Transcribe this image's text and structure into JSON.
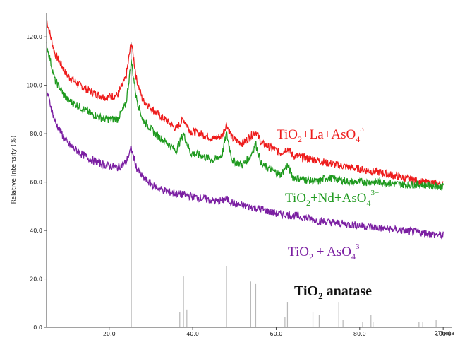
{
  "chart_data": {
    "type": "line",
    "title": "",
    "xlabel": "2Theta",
    "ylabel": "Relative Intensity (%)",
    "xlim": [
      5,
      102
    ],
    "ylim": [
      0,
      130
    ],
    "x_ticks": [
      "20.0",
      "40.0",
      "60.0",
      "80.0",
      "100.0"
    ],
    "y_ticks": [
      "0.0",
      "20.0",
      "40.0",
      "60.0",
      "80.0",
      "100.0",
      "120.0"
    ],
    "grid": false,
    "series": [
      {
        "name": "TiO2+La+AsO4 3-",
        "label_main": "TiO",
        "label_sub": "2",
        "label_rest": "+La+AsO",
        "label_sub2": "4",
        "label_sup": "3−",
        "color": "#ee1c1c",
        "x": [
          5,
          7,
          10,
          13,
          16,
          19,
          22,
          24,
          25.3,
          26.5,
          28,
          31,
          34,
          36,
          37.8,
          39.5,
          42,
          45,
          47,
          48.1,
          49.5,
          52,
          53.9,
          55.1,
          56.5,
          59,
          61,
          62.7,
          64,
          67,
          70,
          72,
          75,
          78,
          81,
          85,
          90,
          95,
          100
        ],
        "y": [
          127,
          113,
          104,
          100,
          97,
          95,
          96,
          103,
          118,
          103,
          94,
          89,
          85,
          82,
          86,
          81,
          80,
          78,
          79,
          84,
          78,
          76,
          79,
          81,
          76,
          74,
          72,
          74,
          71,
          70,
          69,
          68,
          67,
          66,
          65,
          64,
          62,
          60,
          59
        ]
      },
      {
        "name": "TiO2+Nd+AsO4 3-",
        "label_main": "TiO",
        "label_sub": "2",
        "label_rest": "+Nd+AsO",
        "label_sub2": "4",
        "label_sup": "3−",
        "color": "#1f9a1f",
        "x": [
          5,
          7,
          10,
          13,
          16,
          19,
          22,
          24,
          25.3,
          26.5,
          28,
          31,
          34,
          36,
          37.8,
          39.5,
          42,
          45,
          47,
          48.1,
          49.5,
          52,
          53.9,
          55.1,
          56.5,
          59,
          61,
          62.7,
          64,
          67,
          70,
          72,
          75,
          78,
          81,
          85,
          90,
          95,
          100
        ],
        "y": [
          117,
          102,
          94,
          91,
          88,
          86,
          86,
          92,
          110,
          95,
          86,
          80,
          76,
          73,
          80,
          72,
          71,
          69,
          71,
          80,
          69,
          67,
          71,
          76,
          67,
          65,
          63,
          67,
          62,
          61,
          60,
          62,
          61,
          60,
          60,
          60,
          59,
          59,
          58
        ]
      },
      {
        "name": "TiO2 + AsO4 3-",
        "label_main": "TiO",
        "label_sub": "2",
        "label_rest": " + AsO",
        "label_sub2": "4",
        "label_sup": "3-",
        "color": "#7b1fa2",
        "x": [
          5,
          7,
          10,
          13,
          16,
          19,
          22,
          24,
          25.3,
          26.5,
          28,
          31,
          34,
          37,
          40,
          43,
          46,
          48.1,
          50,
          53,
          56,
          60,
          65,
          70,
          75,
          80,
          85,
          90,
          95,
          100
        ],
        "y": [
          98,
          85,
          76,
          72,
          69,
          67,
          66,
          68,
          74,
          66,
          62,
          58,
          56,
          55,
          54,
          53,
          52,
          53,
          51,
          50,
          49,
          47,
          46,
          44,
          43,
          42,
          41,
          40,
          39,
          38
        ]
      }
    ],
    "reference": {
      "name": "TiO2 anatase",
      "label_main": "TiO",
      "label_sub": "2",
      "label_rest": " anatase",
      "color": "#b8b8b8",
      "positions": [
        25.3,
        36.9,
        37.8,
        38.6,
        48.1,
        53.9,
        55.1,
        62.1,
        62.7,
        68.8,
        70.3,
        75.0,
        76.0,
        80.7,
        82.7,
        83.2,
        94.2,
        95.1,
        98.3
      ],
      "intensities": [
        100,
        6,
        20,
        7,
        24,
        18,
        17,
        4,
        10,
        6,
        5,
        10,
        3,
        2,
        5,
        2,
        2,
        2,
        3
      ]
    }
  }
}
